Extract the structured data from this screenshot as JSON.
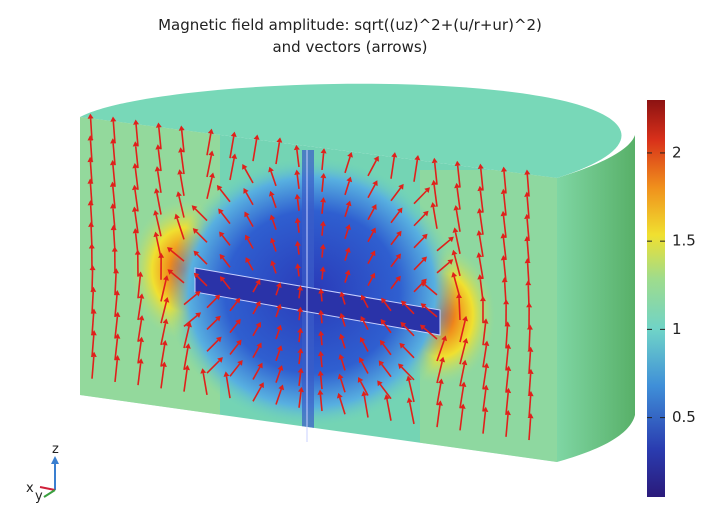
{
  "chart_data": {
    "type": "field",
    "title": [
      "Magnetic field amplitude: sqrt((uz)^2+(u/r+ur)^2)",
      "and vectors (arrows)"
    ],
    "clim": [
      0.05,
      2.3
    ],
    "cticks": [
      0.5,
      1,
      1.5,
      2
    ],
    "axis_labels": [
      "z",
      "x",
      "y"
    ]
  }
}
